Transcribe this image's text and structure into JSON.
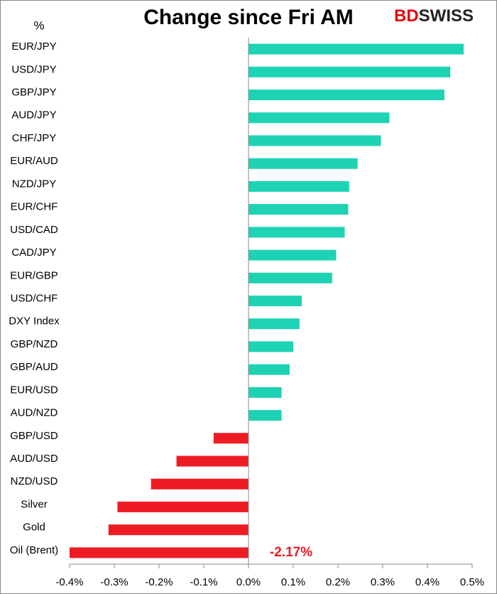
{
  "chart_data": {
    "type": "hbar",
    "title": "Change since Fri AM",
    "unit_label": "%",
    "brand": {
      "prefix": "BD",
      "name": "SWISS"
    },
    "categories": [
      "EUR/JPY",
      "USD/JPY",
      "GBP/JPY",
      "AUD/JPY",
      "CHF/JPY",
      "EUR/AUD",
      "NZD/JPY",
      "EUR/CHF",
      "USD/CAD",
      "CAD/JPY",
      "EUR/GBP",
      "USD/CHF",
      "DXY Index",
      "GBP/NZD",
      "GBP/AUD",
      "EUR/USD",
      "AUD/NZD",
      "GBP/USD",
      "AUD/USD",
      "NZD/USD",
      "Silver",
      "Gold",
      "Oil (Brent)"
    ],
    "values": [
      0.481,
      0.451,
      0.438,
      0.315,
      0.296,
      0.244,
      0.225,
      0.223,
      0.215,
      0.196,
      0.187,
      0.119,
      0.114,
      0.1,
      0.092,
      0.074,
      0.074,
      -0.078,
      -0.161,
      -0.218,
      -0.293,
      -0.313,
      -2.17
    ],
    "value_labels": [
      null,
      null,
      null,
      null,
      null,
      null,
      null,
      null,
      null,
      null,
      null,
      null,
      null,
      null,
      null,
      null,
      null,
      null,
      null,
      null,
      null,
      null,
      "-2.17%"
    ],
    "positive_color": "#1ed3b4",
    "negative_color": "#ed1c24",
    "xlim": [
      -0.4,
      0.5
    ],
    "xticks": [
      {
        "value": -0.4,
        "label": "-0.4%"
      },
      {
        "value": -0.3,
        "label": "-0.3%"
      },
      {
        "value": -0.2,
        "label": "-0.2%"
      },
      {
        "value": -0.1,
        "label": "-0.1%"
      },
      {
        "value": 0,
        "label": "0.0%"
      },
      {
        "value": 0.1,
        "label": "0.1%"
      },
      {
        "value": 0.2,
        "label": "0.2%"
      },
      {
        "value": 0.3,
        "label": "0.3%"
      },
      {
        "value": 0.4,
        "label": "0.4%"
      },
      {
        "value": 0.5,
        "label": "0.5%"
      }
    ],
    "grid": false
  }
}
